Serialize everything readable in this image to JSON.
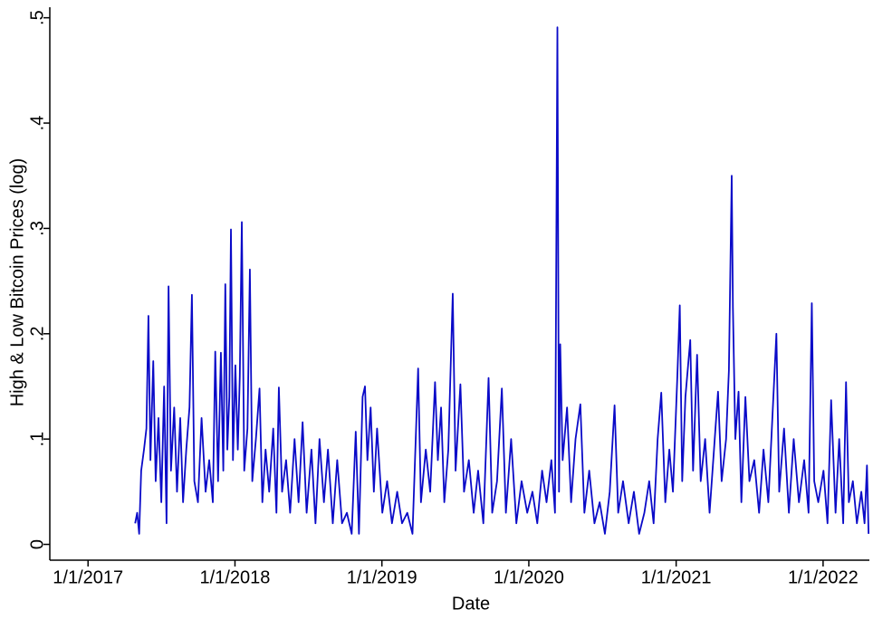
{
  "chart_data": {
    "type": "line",
    "xlabel": "Date",
    "ylabel": "High & Low Bitcoin Prices (log)",
    "color": "#0a0ac8",
    "xlim": [
      "2016-09-28",
      "2022-04-26"
    ],
    "ylim": [
      -0.015,
      0.51
    ],
    "xticks": [
      {
        "value": "2017-01-01",
        "label": "1/1/2017"
      },
      {
        "value": "2018-01-01",
        "label": "1/1/2018"
      },
      {
        "value": "2019-01-01",
        "label": "1/1/2019"
      },
      {
        "value": "2020-01-01",
        "label": "1/1/2020"
      },
      {
        "value": "2021-01-01",
        "label": "1/1/2021"
      },
      {
        "value": "2022-01-01",
        "label": "1/1/2022"
      }
    ],
    "yticks": [
      0,
      {
        "value": 0.1,
        "label": ".1"
      },
      {
        "value": 0.2,
        "label": ".2"
      },
      {
        "value": 0.3,
        "label": ".3"
      },
      {
        "value": 0.4,
        "label": ".4"
      },
      {
        "value": 0.5,
        "label": ".5"
      }
    ],
    "x": [
      "2017-04-28",
      "2017-05-03",
      "2017-05-08",
      "2017-05-13",
      "2017-05-20",
      "2017-05-26",
      "2017-05-31",
      "2017-06-05",
      "2017-06-12",
      "2017-06-18",
      "2017-06-25",
      "2017-07-02",
      "2017-07-09",
      "2017-07-15",
      "2017-07-20",
      "2017-07-26",
      "2017-08-03",
      "2017-08-10",
      "2017-08-18",
      "2017-08-25",
      "2017-09-02",
      "2017-09-10",
      "2017-09-16",
      "2017-09-22",
      "2017-10-01",
      "2017-10-10",
      "2017-10-20",
      "2017-10-29",
      "2017-11-07",
      "2017-11-13",
      "2017-11-20",
      "2017-11-27",
      "2017-12-03",
      "2017-12-08",
      "2017-12-13",
      "2017-12-18",
      "2017-12-22",
      "2017-12-27",
      "2018-01-02",
      "2018-01-08",
      "2018-01-13",
      "2018-01-18",
      "2018-01-24",
      "2018-02-01",
      "2018-02-07",
      "2018-02-13",
      "2018-02-22",
      "2018-03-03",
      "2018-03-10",
      "2018-03-18",
      "2018-03-27",
      "2018-04-06",
      "2018-04-14",
      "2018-04-20",
      "2018-04-28",
      "2018-05-08",
      "2018-05-18",
      "2018-05-29",
      "2018-06-08",
      "2018-06-18",
      "2018-06-28",
      "2018-07-10",
      "2018-07-20",
      "2018-07-30",
      "2018-08-10",
      "2018-08-20",
      "2018-09-01",
      "2018-09-12",
      "2018-09-24",
      "2018-10-06",
      "2018-10-18",
      "2018-10-28",
      "2018-11-05",
      "2018-11-14",
      "2018-11-20",
      "2018-11-26",
      "2018-12-04",
      "2018-12-12",
      "2018-12-20",
      "2019-01-02",
      "2019-01-14",
      "2019-01-26",
      "2019-02-08",
      "2019-02-20",
      "2019-03-05",
      "2019-03-18",
      "2019-04-01",
      "2019-04-08",
      "2019-04-20",
      "2019-05-01",
      "2019-05-13",
      "2019-05-20",
      "2019-05-28",
      "2019-06-05",
      "2019-06-15",
      "2019-06-26",
      "2019-07-03",
      "2019-07-15",
      "2019-07-24",
      "2019-08-05",
      "2019-08-17",
      "2019-08-28",
      "2019-09-10",
      "2019-09-23",
      "2019-10-02",
      "2019-10-14",
      "2019-10-26",
      "2019-11-05",
      "2019-11-18",
      "2019-12-01",
      "2019-12-14",
      "2019-12-28",
      "2020-01-10",
      "2020-01-22",
      "2020-02-03",
      "2020-02-14",
      "2020-02-26",
      "2020-03-06",
      "2020-03-12",
      "2020-03-16",
      "2020-03-19",
      "2020-03-25",
      "2020-04-05",
      "2020-04-15",
      "2020-04-26",
      "2020-05-08",
      "2020-05-18",
      "2020-05-30",
      "2020-06-12",
      "2020-06-25",
      "2020-07-08",
      "2020-07-20",
      "2020-08-01",
      "2020-08-10",
      "2020-08-22",
      "2020-09-05",
      "2020-09-18",
      "2020-10-01",
      "2020-10-14",
      "2020-10-26",
      "2020-11-06",
      "2020-11-16",
      "2020-11-25",
      "2020-12-05",
      "2020-12-15",
      "2020-12-24",
      "2021-01-04",
      "2021-01-10",
      "2021-01-16",
      "2021-01-24",
      "2021-02-05",
      "2021-02-12",
      "2021-02-22",
      "2021-03-03",
      "2021-03-14",
      "2021-03-25",
      "2021-04-05",
      "2021-04-15",
      "2021-04-24",
      "2021-05-05",
      "2021-05-12",
      "2021-05-19",
      "2021-05-22",
      "2021-05-28",
      "2021-06-05",
      "2021-06-12",
      "2021-06-22",
      "2021-07-02",
      "2021-07-14",
      "2021-07-26",
      "2021-08-06",
      "2021-08-18",
      "2021-09-07",
      "2021-09-14",
      "2021-09-26",
      "2021-10-08",
      "2021-10-20",
      "2021-11-02",
      "2021-11-15",
      "2021-11-26",
      "2021-12-04",
      "2021-12-10",
      "2021-12-20",
      "2022-01-02",
      "2022-01-12",
      "2022-01-21",
      "2022-02-01",
      "2022-02-10",
      "2022-02-20",
      "2022-02-27",
      "2022-03-06",
      "2022-03-16",
      "2022-03-26",
      "2022-04-06",
      "2022-04-14",
      "2022-04-20",
      "2022-04-24"
    ],
    "values": [
      0.02,
      0.03,
      0.01,
      0.07,
      0.09,
      0.11,
      0.217,
      0.08,
      0.174,
      0.06,
      0.12,
      0.04,
      0.15,
      0.02,
      0.245,
      0.07,
      0.13,
      0.05,
      0.12,
      0.04,
      0.09,
      0.13,
      0.237,
      0.06,
      0.04,
      0.12,
      0.05,
      0.08,
      0.04,
      0.183,
      0.06,
      0.182,
      0.07,
      0.247,
      0.09,
      0.14,
      0.299,
      0.08,
      0.17,
      0.09,
      0.16,
      0.306,
      0.07,
      0.11,
      0.261,
      0.06,
      0.1,
      0.148,
      0.04,
      0.09,
      0.05,
      0.11,
      0.03,
      0.149,
      0.05,
      0.08,
      0.03,
      0.1,
      0.04,
      0.116,
      0.03,
      0.09,
      0.02,
      0.1,
      0.04,
      0.09,
      0.02,
      0.08,
      0.02,
      0.03,
      0.01,
      0.107,
      0.01,
      0.14,
      0.15,
      0.08,
      0.13,
      0.05,
      0.11,
      0.03,
      0.06,
      0.02,
      0.05,
      0.02,
      0.03,
      0.01,
      0.167,
      0.04,
      0.09,
      0.05,
      0.154,
      0.08,
      0.13,
      0.04,
      0.09,
      0.238,
      0.07,
      0.152,
      0.05,
      0.08,
      0.03,
      0.07,
      0.02,
      0.158,
      0.03,
      0.06,
      0.148,
      0.03,
      0.1,
      0.02,
      0.06,
      0.03,
      0.05,
      0.02,
      0.07,
      0.04,
      0.08,
      0.03,
      0.491,
      0.05,
      0.19,
      0.08,
      0.13,
      0.04,
      0.1,
      0.133,
      0.03,
      0.07,
      0.02,
      0.04,
      0.01,
      0.05,
      0.132,
      0.03,
      0.06,
      0.02,
      0.05,
      0.01,
      0.03,
      0.06,
      0.02,
      0.1,
      0.144,
      0.04,
      0.09,
      0.05,
      0.16,
      0.227,
      0.06,
      0.14,
      0.194,
      0.07,
      0.18,
      0.06,
      0.1,
      0.03,
      0.09,
      0.145,
      0.06,
      0.1,
      0.165,
      0.35,
      0.225,
      0.1,
      0.145,
      0.04,
      0.14,
      0.06,
      0.08,
      0.03,
      0.09,
      0.04,
      0.2,
      0.05,
      0.11,
      0.03,
      0.1,
      0.04,
      0.08,
      0.03,
      0.229,
      0.06,
      0.04,
      0.07,
      0.02,
      0.137,
      0.03,
      0.1,
      0.02,
      0.154,
      0.04,
      0.06,
      0.02,
      0.05,
      0.02,
      0.075,
      0.01
    ]
  }
}
